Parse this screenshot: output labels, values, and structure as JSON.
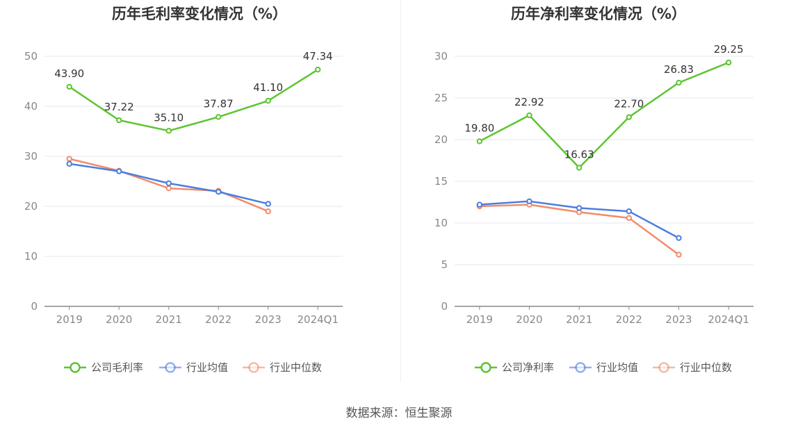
{
  "colors": {
    "company": "#5cc52f",
    "avg": "#4a7ee0",
    "median": "#f28c6b",
    "grid": "#e4e7f2",
    "axis": "#888888"
  },
  "source_text": "数据来源：恒生聚源",
  "chart_data": [
    {
      "type": "line",
      "title": "历年毛利率变化情况（%）",
      "categories": [
        "2019",
        "2020",
        "2021",
        "2022",
        "2023",
        "2024Q1"
      ],
      "ylim": [
        0,
        50
      ],
      "yticks": [
        "0",
        "10",
        "20",
        "30",
        "40",
        "50"
      ],
      "grid": true,
      "legend_position": "bottom",
      "series": [
        {
          "name": "公司毛利率",
          "values": [
            43.9,
            37.22,
            35.1,
            37.87,
            41.1,
            47.34
          ],
          "labels": [
            "43.90",
            "37.22",
            "35.10",
            "37.87",
            "41.10",
            "47.34"
          ]
        },
        {
          "name": "行业均值",
          "values": [
            28.5,
            27.0,
            24.6,
            22.9,
            20.5,
            null
          ]
        },
        {
          "name": "行业中位数",
          "values": [
            29.5,
            27.1,
            23.6,
            23.1,
            19.0,
            null
          ]
        }
      ]
    },
    {
      "type": "line",
      "title": "历年净利率变化情况（%）",
      "categories": [
        "2019",
        "2020",
        "2021",
        "2022",
        "2023",
        "2024Q1"
      ],
      "ylim": [
        0,
        30
      ],
      "yticks": [
        "0",
        "5",
        "10",
        "15",
        "20",
        "25",
        "30"
      ],
      "grid": true,
      "legend_position": "bottom",
      "series": [
        {
          "name": "公司净利率",
          "values": [
            19.8,
            22.92,
            16.63,
            22.7,
            26.83,
            29.25
          ],
          "labels": [
            "19.80",
            "22.92",
            "16.63",
            "22.70",
            "26.83",
            "29.25"
          ]
        },
        {
          "name": "行业均值",
          "values": [
            12.2,
            12.6,
            11.8,
            11.4,
            8.2,
            null
          ]
        },
        {
          "name": "行业中位数",
          "values": [
            12.0,
            12.2,
            11.3,
            10.6,
            6.2,
            null
          ]
        }
      ]
    }
  ]
}
